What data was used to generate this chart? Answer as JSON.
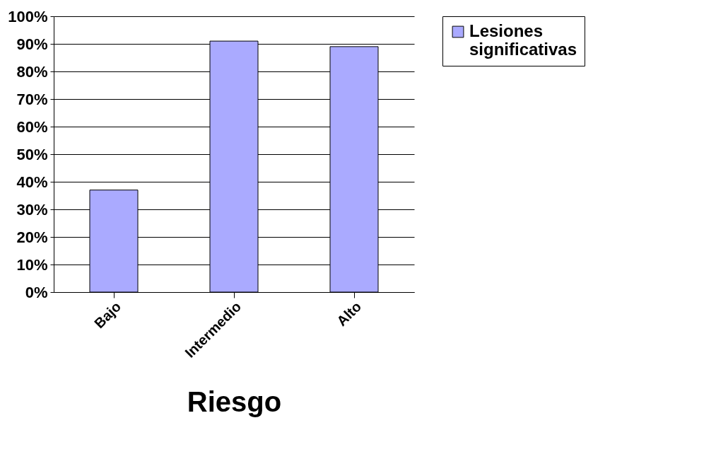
{
  "chart_data": {
    "type": "bar",
    "xlabel": "Riesgo",
    "categories": [
      "Bajo",
      "Intermedio",
      "Alto"
    ],
    "series": [
      {
        "name": "Lesiones significativas",
        "color": "#aaaaff",
        "values": [
          37,
          91,
          89
        ]
      }
    ],
    "ylim": [
      0,
      100
    ],
    "yticks": [
      {
        "value": 0,
        "label": "0%"
      },
      {
        "value": 10,
        "label": "10%"
      },
      {
        "value": 20,
        "label": "20%"
      },
      {
        "value": 30,
        "label": "30%"
      },
      {
        "value": 40,
        "label": "40%"
      },
      {
        "value": 50,
        "label": "50%"
      },
      {
        "value": 60,
        "label": "60%"
      },
      {
        "value": 70,
        "label": "70%"
      },
      {
        "value": 80,
        "label": "80%"
      },
      {
        "value": 90,
        "label": "90%"
      },
      {
        "value": 100,
        "label": "100%"
      }
    ],
    "grid": "y",
    "legend": "right"
  }
}
